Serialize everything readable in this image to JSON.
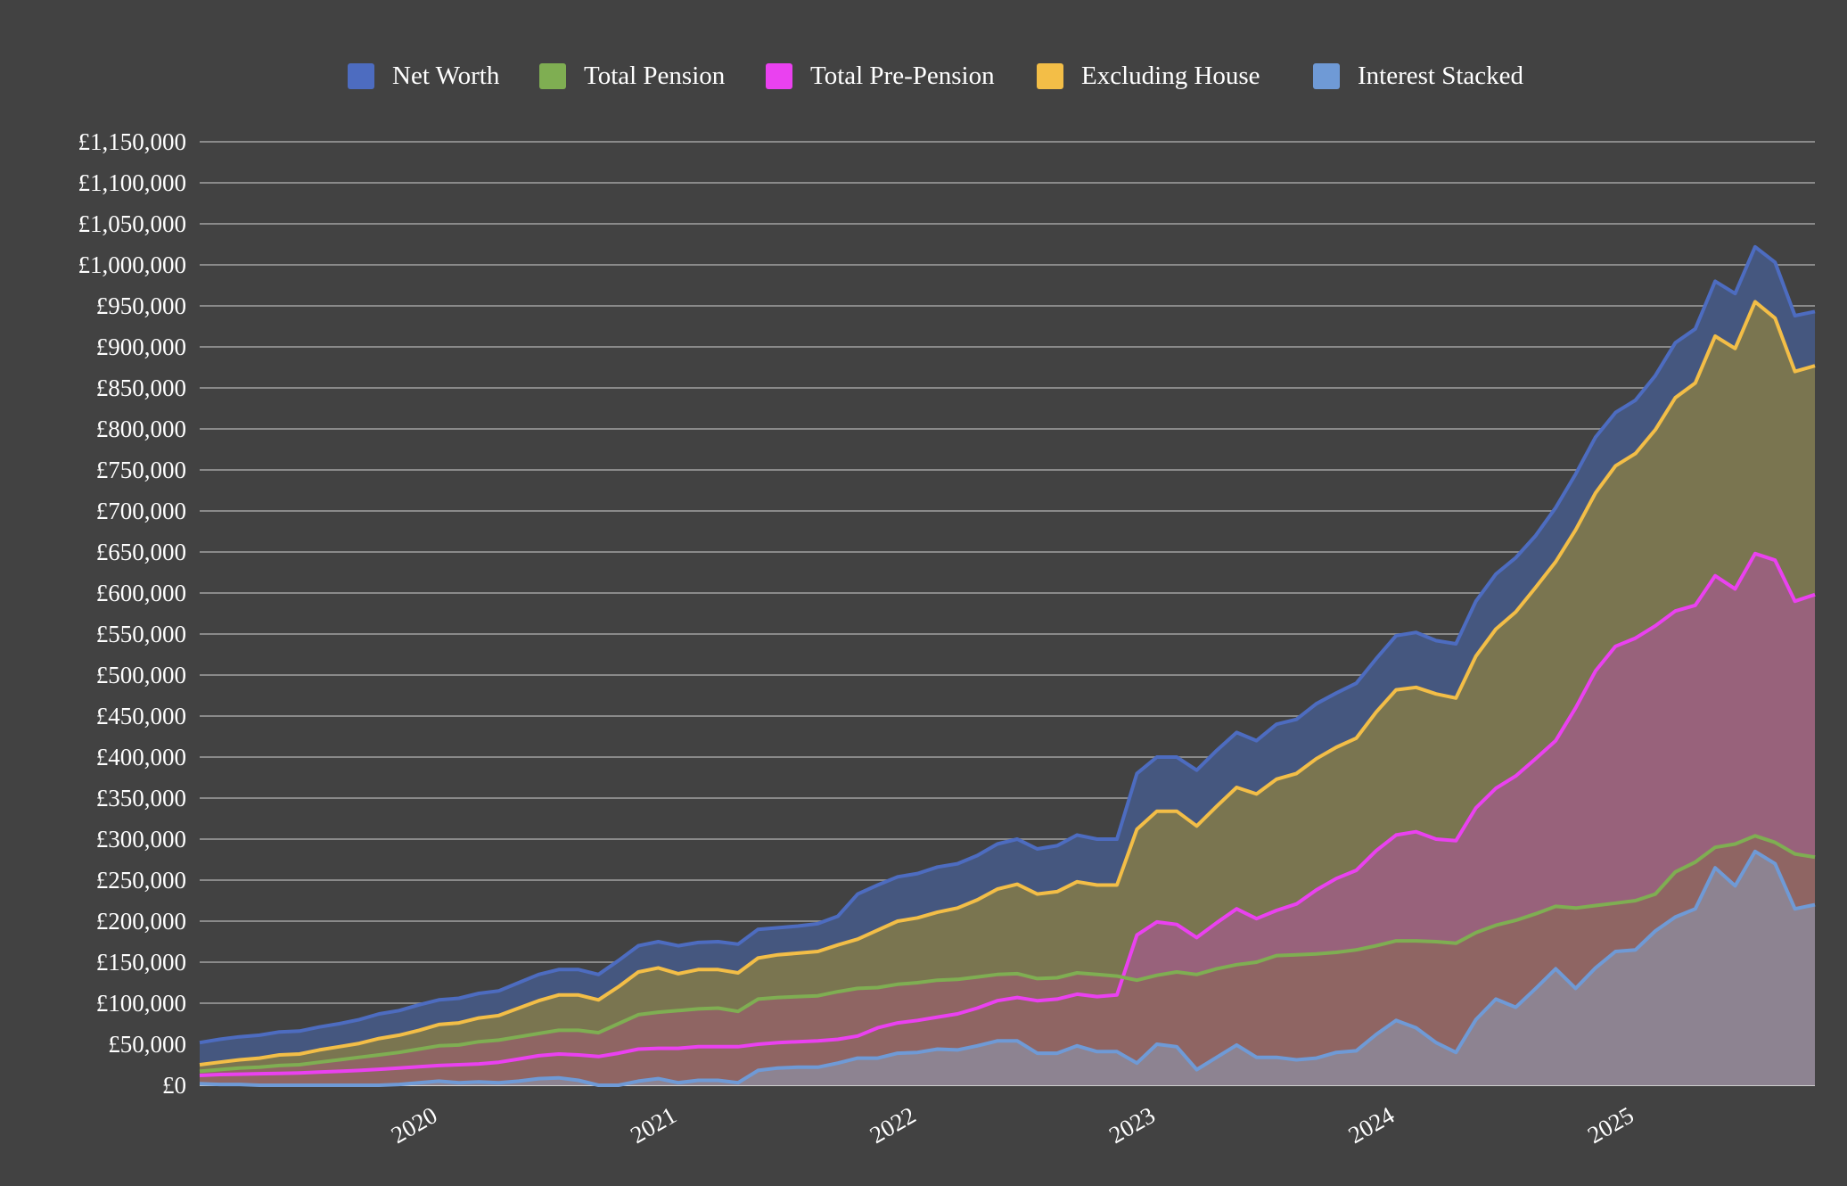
{
  "colors": {
    "background": "#424242",
    "gridline": "#8a8a8a",
    "axis_text": "#ffffff"
  },
  "chart_data": {
    "type": "area",
    "title": "",
    "xlabel": "",
    "ylabel": "",
    "ylim": [
      0,
      1150000
    ],
    "y_tick_step": 50000,
    "y_ticks": [
      "£0",
      "£50,000",
      "£100,000",
      "£150,000",
      "£200,000",
      "£250,000",
      "£300,000",
      "£350,000",
      "£400,000",
      "£450,000",
      "£500,000",
      "£550,000",
      "£600,000",
      "£650,000",
      "£700,000",
      "£750,000",
      "£800,000",
      "£850,000",
      "£900,000",
      "£950,000",
      "£1,000,000",
      "£1,050,000",
      "£1,100,000",
      "£1,150,000"
    ],
    "x_ticks": [
      "2020",
      "2021",
      "2022",
      "2023",
      "2024",
      "2025"
    ],
    "x_range": [
      "2019-01",
      "2025-10"
    ],
    "grid": true,
    "legend_position": "top",
    "x": [
      "2019-01",
      "2019-02",
      "2019-03",
      "2019-04",
      "2019-05",
      "2019-06",
      "2019-07",
      "2019-08",
      "2019-09",
      "2019-10",
      "2019-11",
      "2019-12",
      "2020-01",
      "2020-02",
      "2020-03",
      "2020-04",
      "2020-05",
      "2020-06",
      "2020-07",
      "2020-08",
      "2020-09",
      "2020-10",
      "2020-11",
      "2020-12",
      "2021-01",
      "2021-02",
      "2021-03",
      "2021-04",
      "2021-05",
      "2021-06",
      "2021-07",
      "2021-08",
      "2021-09",
      "2021-10",
      "2021-11",
      "2021-12",
      "2022-01",
      "2022-02",
      "2022-03",
      "2022-04",
      "2022-05",
      "2022-06",
      "2022-07",
      "2022-08",
      "2022-09",
      "2022-10",
      "2022-11",
      "2022-12",
      "2023-01",
      "2023-02",
      "2023-03",
      "2023-04",
      "2023-05",
      "2023-06",
      "2023-07",
      "2023-08",
      "2023-09",
      "2023-10",
      "2023-11",
      "2023-12",
      "2024-01",
      "2024-02",
      "2024-03",
      "2024-04",
      "2024-05",
      "2024-06",
      "2024-07",
      "2024-08",
      "2024-09",
      "2024-10",
      "2024-11",
      "2024-12",
      "2025-01",
      "2025-02",
      "2025-03",
      "2025-04",
      "2025-05",
      "2025-06",
      "2025-07",
      "2025-08",
      "2025-09",
      "2025-10"
    ],
    "series": [
      {
        "name": "Net Worth",
        "color": "#4d6cc0",
        "fill": "#45577f",
        "values": [
          52000,
          56000,
          59000,
          61000,
          65000,
          66000,
          71000,
          75000,
          80000,
          87000,
          91000,
          98000,
          104000,
          106000,
          112000,
          115000,
          125000,
          135000,
          141000,
          141000,
          135000,
          152000,
          170000,
          175000,
          170000,
          174000,
          175000,
          172000,
          190000,
          192000,
          194000,
          197000,
          206000,
          233000,
          244000,
          254000,
          258000,
          266000,
          270000,
          280000,
          294000,
          300000,
          288000,
          292000,
          305000,
          300000,
          300000,
          380000,
          400000,
          400000,
          384000,
          408000,
          430000,
          420000,
          440000,
          446000,
          465000,
          478000,
          490000,
          520000,
          548000,
          552000,
          542000,
          538000,
          590000,
          623000,
          643000,
          670000,
          704000,
          745000,
          790000,
          820000,
          835000,
          865000,
          905000,
          922000,
          980000,
          965000,
          1022000,
          1003000,
          938000,
          943000
        ]
      },
      {
        "name": "Excluding House",
        "color": "#f3be47",
        "fill": "#7a7550",
        "values": [
          25000,
          28000,
          31000,
          33000,
          37000,
          38000,
          43000,
          47000,
          51000,
          57000,
          61000,
          67000,
          74000,
          76000,
          82000,
          85000,
          94000,
          103000,
          110000,
          110000,
          104000,
          120000,
          138000,
          143000,
          136000,
          141000,
          141000,
          137000,
          155000,
          159000,
          161000,
          163000,
          171000,
          178000,
          189000,
          200000,
          204000,
          211000,
          216000,
          226000,
          239000,
          245000,
          233000,
          236000,
          248000,
          244000,
          244000,
          312000,
          334000,
          334000,
          316000,
          340000,
          363000,
          355000,
          373000,
          380000,
          398000,
          412000,
          423000,
          455000,
          482000,
          485000,
          477000,
          472000,
          523000,
          556000,
          577000,
          607000,
          638000,
          677000,
          722000,
          755000,
          770000,
          799000,
          838000,
          856000,
          913000,
          898000,
          955000,
          935000,
          870000,
          877000
        ]
      },
      {
        "name": "Total Pre-Pension",
        "color": "#ea41f0",
        "fill": "#98627b",
        "values": [
          12000,
          13000,
          13500,
          14000,
          14500,
          15000,
          16000,
          17000,
          18000,
          19500,
          21000,
          22500,
          24000,
          25000,
          26000,
          28000,
          32000,
          36000,
          38000,
          37000,
          35000,
          39000,
          44000,
          45000,
          45000,
          47000,
          47000,
          47000,
          50000,
          52000,
          53000,
          54000,
          56000,
          60000,
          70000,
          76000,
          79000,
          83000,
          87000,
          94000,
          103000,
          107000,
          103000,
          105000,
          111000,
          108000,
          110000,
          183000,
          199000,
          196000,
          180000,
          198000,
          215000,
          203000,
          213000,
          221000,
          238000,
          252000,
          262000,
          286000,
          305000,
          309000,
          300000,
          298000,
          338000,
          362000,
          377000,
          398000,
          420000,
          460000,
          505000,
          535000,
          545000,
          560000,
          578000,
          585000,
          621000,
          605000,
          648000,
          640000,
          590000,
          598000
        ]
      },
      {
        "name": "Total Pension",
        "color": "#7fae52",
        "fill": "#8f6563",
        "values": [
          17000,
          19000,
          21000,
          22000,
          24000,
          25000,
          28000,
          31000,
          34000,
          37000,
          40000,
          44000,
          48000,
          49000,
          53000,
          55000,
          59000,
          63000,
          67000,
          67000,
          64000,
          75000,
          86000,
          89000,
          91000,
          93000,
          94000,
          90000,
          105000,
          107000,
          108000,
          109000,
          114000,
          118000,
          119000,
          123000,
          125000,
          128000,
          129000,
          132000,
          135000,
          136000,
          130000,
          131000,
          137000,
          135000,
          133000,
          128000,
          134000,
          138000,
          135000,
          142000,
          147000,
          150000,
          158000,
          159000,
          160000,
          162000,
          165000,
          170000,
          176000,
          176000,
          175000,
          173000,
          186000,
          195000,
          201000,
          209000,
          218000,
          216000,
          219000,
          222000,
          225000,
          233000,
          260000,
          272000,
          290000,
          294000,
          304000,
          296000,
          282000,
          278000
        ]
      },
      {
        "name": "Interest  Stacked",
        "color": "#6f9ad6",
        "fill": "#8d8391",
        "values": [
          2000,
          1000,
          1000,
          0,
          0,
          0,
          0,
          0,
          0,
          0,
          1000,
          3000,
          5000,
          3000,
          4000,
          3000,
          5000,
          8000,
          9000,
          6000,
          -5000,
          -2000,
          5000,
          8000,
          3000,
          6000,
          6000,
          3000,
          18000,
          21000,
          22000,
          22000,
          27000,
          33000,
          33000,
          39000,
          40000,
          44000,
          43000,
          48000,
          54000,
          54000,
          39000,
          39000,
          48000,
          41000,
          41000,
          27000,
          50000,
          47000,
          19000,
          34000,
          49000,
          34000,
          34000,
          31000,
          33000,
          40000,
          42000,
          62000,
          79000,
          70000,
          52000,
          40000,
          80000,
          105000,
          95000,
          118000,
          142000,
          118000,
          143000,
          163000,
          165000,
          188000,
          205000,
          215000,
          265000,
          243000,
          285000,
          270000,
          215000,
          220000
        ]
      }
    ]
  },
  "legend": [
    {
      "label": "Net Worth",
      "color": "#4d6cc0"
    },
    {
      "label": "Total Pension",
      "color": "#7fae52"
    },
    {
      "label": "Total Pre-Pension",
      "color": "#ea41f0"
    },
    {
      "label": "Excluding House",
      "color": "#f3be47"
    },
    {
      "label": "Interest  Stacked",
      "color": "#6f9ad6"
    }
  ]
}
